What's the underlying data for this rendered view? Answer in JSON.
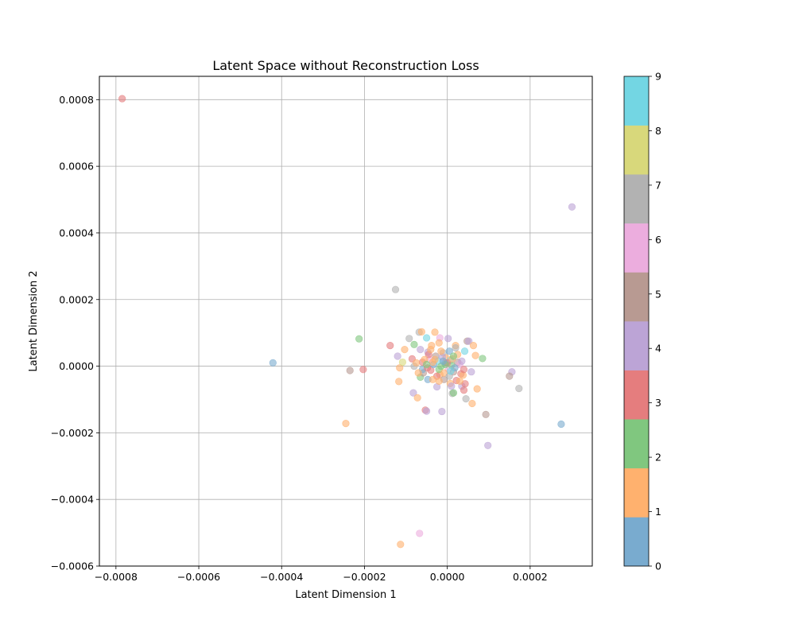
{
  "chart_data": {
    "type": "scatter",
    "title": "Latent Space without Reconstruction Loss",
    "xlabel": "Latent Dimension 1",
    "ylabel": "Latent Dimension 2",
    "xlim": [
      -0.00084,
      0.00035
    ],
    "ylim": [
      -0.0006,
      0.00087
    ],
    "xticks": [
      {
        "value": -0.0008,
        "label": "−0.0008"
      },
      {
        "value": -0.0006,
        "label": "−0.0006"
      },
      {
        "value": -0.0004,
        "label": "−0.0004"
      },
      {
        "value": -0.0002,
        "label": "−0.0002"
      },
      {
        "value": 0.0,
        "label": "0.0000"
      },
      {
        "value": 0.0002,
        "label": "0.0002"
      }
    ],
    "yticks": [
      {
        "value": -0.0006,
        "label": "−0.0006"
      },
      {
        "value": -0.0004,
        "label": "−0.0004"
      },
      {
        "value": -0.0002,
        "label": "−0.0002"
      },
      {
        "value": 0.0,
        "label": "0.0000"
      },
      {
        "value": 0.0002,
        "label": "0.0002"
      },
      {
        "value": 0.0004,
        "label": "0.0004"
      },
      {
        "value": 0.0006,
        "label": "0.0006"
      },
      {
        "value": 0.0008,
        "label": "0.0008"
      }
    ],
    "grid": true,
    "colormap": "tab10",
    "colorbar": {
      "min": 0,
      "max": 9,
      "ticks": [
        {
          "value": 0,
          "label": "0"
        },
        {
          "value": 1,
          "label": "1"
        },
        {
          "value": 2,
          "label": "2"
        },
        {
          "value": 3,
          "label": "3"
        },
        {
          "value": 4,
          "label": "4"
        },
        {
          "value": 5,
          "label": "5"
        },
        {
          "value": 6,
          "label": "6"
        },
        {
          "value": 7,
          "label": "7"
        },
        {
          "value": 8,
          "label": "8"
        },
        {
          "value": 9,
          "label": "9"
        }
      ],
      "colors": [
        "#79abcf",
        "#ffb16e",
        "#80c77f",
        "#e57d7e",
        "#bca4d6",
        "#b89a92",
        "#ecadde",
        "#b2b2b2",
        "#d8d87b",
        "#73d6e3"
      ]
    },
    "points": [
      {
        "x": -0.000785,
        "y": 0.000803,
        "label": 3
      },
      {
        "x": 0.000301,
        "y": 0.000478,
        "label": 4
      },
      {
        "x": -0.000125,
        "y": 0.00023,
        "label": 7
      },
      {
        "x": -0.000421,
        "y": 1e-05,
        "label": 0
      },
      {
        "x": -0.000235,
        "y": -1.3e-05,
        "label": 5
      },
      {
        "x": -0.000203,
        "y": -1e-05,
        "label": 3
      },
      {
        "x": -0.000213,
        "y": 8.2e-05,
        "label": 2
      },
      {
        "x": -0.000245,
        "y": -0.000172,
        "label": 1
      },
      {
        "x": 0.000275,
        "y": -0.000174,
        "label": 0
      },
      {
        "x": 0.000173,
        "y": -6.7e-05,
        "label": 7
      },
      {
        "x": 0.000156,
        "y": -1.7e-05,
        "label": 4
      },
      {
        "x": 0.00015,
        "y": -3e-05,
        "label": 5
      },
      {
        "x": 9.8e-05,
        "y": -0.000238,
        "label": 4
      },
      {
        "x": 9.3e-05,
        "y": -0.000145,
        "label": 5
      },
      {
        "x": 8.5e-05,
        "y": 2.3e-05,
        "label": 2
      },
      {
        "x": -0.000113,
        "y": -0.000535,
        "label": 1
      },
      {
        "x": -6.7e-05,
        "y": -0.000502,
        "label": 6
      },
      {
        "x": -0.000138,
        "y": 6.2e-05,
        "label": 3
      },
      {
        "x": -0.00012,
        "y": 3e-05,
        "label": 4
      },
      {
        "x": -0.000115,
        "y": -5e-06,
        "label": 1
      },
      {
        "x": -0.000117,
        "y": -4.6e-05,
        "label": 1
      },
      {
        "x": -0.000108,
        "y": 1.2e-05,
        "label": 8
      },
      {
        "x": -0.000103,
        "y": 5e-05,
        "label": 1
      },
      {
        "x": -9.2e-05,
        "y": 8.3e-05,
        "label": 7
      },
      {
        "x": -8.5e-05,
        "y": 2.2e-05,
        "label": 3
      },
      {
        "x": -8.2e-05,
        "y": -8e-05,
        "label": 4
      },
      {
        "x": -8e-05,
        "y": 6.5e-05,
        "label": 2
      },
      {
        "x": -8e-05,
        "y": 0.0,
        "label": 7
      },
      {
        "x": -7.2e-05,
        "y": -9.5e-05,
        "label": 1
      },
      {
        "x": -6.8e-05,
        "y": 0.000102,
        "label": 7
      },
      {
        "x": -6.2e-05,
        "y": 0.000103,
        "label": 1
      },
      {
        "x": -6.5e-05,
        "y": -3.3e-05,
        "label": 2
      },
      {
        "x": -6e-05,
        "y": 1.2e-05,
        "label": 3
      },
      {
        "x": -5.8e-05,
        "y": -2e-05,
        "label": 5
      },
      {
        "x": -5.3e-05,
        "y": -0.000132,
        "label": 3
      },
      {
        "x": -5e-05,
        "y": -0.000135,
        "label": 4
      },
      {
        "x": -5e-05,
        "y": 8.5e-05,
        "label": 9
      },
      {
        "x": -4.7e-05,
        "y": 4.2e-05,
        "label": 4
      },
      {
        "x": -4.7e-05,
        "y": -4e-05,
        "label": 0
      },
      {
        "x": -4.3e-05,
        "y": 2e-05,
        "label": 6
      },
      {
        "x": -4e-05,
        "y": -1.2e-05,
        "label": 3
      },
      {
        "x": -3.8e-05,
        "y": 6.2e-05,
        "label": 1
      },
      {
        "x": -3.3e-05,
        "y": 5e-06,
        "label": 0
      },
      {
        "x": -3e-05,
        "y": 0.000102,
        "label": 1
      },
      {
        "x": -2.8e-05,
        "y": 3e-05,
        "label": 5
      },
      {
        "x": -2.5e-05,
        "y": -6.2e-05,
        "label": 4
      },
      {
        "x": -2.2e-05,
        "y": 1.5e-05,
        "label": 9
      },
      {
        "x": -1.8e-05,
        "y": 8.5e-05,
        "label": 6
      },
      {
        "x": -1.8e-05,
        "y": -2.5e-05,
        "label": 1
      },
      {
        "x": -1.5e-05,
        "y": 0.0,
        "label": 2
      },
      {
        "x": -1.3e-05,
        "y": -0.000136,
        "label": 4
      },
      {
        "x": -1e-05,
        "y": 4e-05,
        "label": 7
      },
      {
        "x": -8e-06,
        "y": -4e-05,
        "label": 5
      },
      {
        "x": -5e-06,
        "y": 1e-05,
        "label": 0
      },
      {
        "x": -3e-06,
        "y": 2.5e-05,
        "label": 1
      },
      {
        "x": 2e-06,
        "y": 8.3e-05,
        "label": 4
      },
      {
        "x": 3e-06,
        "y": -1e-05,
        "label": 6
      },
      {
        "x": 5e-06,
        "y": 4.5e-05,
        "label": 0
      },
      {
        "x": 7e-06,
        "y": -5.2e-05,
        "label": 1
      },
      {
        "x": 8e-06,
        "y": 1.8e-05,
        "label": 9
      },
      {
        "x": 1e-05,
        "y": 3e-06,
        "label": 2
      },
      {
        "x": 1.2e-05,
        "y": -8.2e-05,
        "label": 7
      },
      {
        "x": 1.5e-05,
        "y": -1.7e-05,
        "label": 5
      },
      {
        "x": 1.5e-05,
        "y": -8e-05,
        "label": 2
      },
      {
        "x": 2e-05,
        "y": 6.2e-05,
        "label": 1
      },
      {
        "x": 2.2e-05,
        "y": -4.3e-05,
        "label": 3
      },
      {
        "x": 2.5e-05,
        "y": 1.2e-05,
        "label": 5
      },
      {
        "x": 3e-05,
        "y": 5e-06,
        "label": 6
      },
      {
        "x": 3.3e-05,
        "y": -2.3e-05,
        "label": 3
      },
      {
        "x": 3.5e-05,
        "y": -6e-05,
        "label": 4
      },
      {
        "x": 3.8e-05,
        "y": -2.7e-05,
        "label": 1
      },
      {
        "x": 4e-05,
        "y": -7.2e-05,
        "label": 3
      },
      {
        "x": 4.2e-05,
        "y": 4.5e-05,
        "label": 9
      },
      {
        "x": 4.3e-05,
        "y": -5.3e-05,
        "label": 3
      },
      {
        "x": 4.5e-05,
        "y": -9.8e-05,
        "label": 7
      },
      {
        "x": 4.8e-05,
        "y": 7.5e-05,
        "label": 5
      },
      {
        "x": 5.2e-05,
        "y": 7.5e-05,
        "label": 4
      },
      {
        "x": 5.8e-05,
        "y": -1.7e-05,
        "label": 4
      },
      {
        "x": 6e-05,
        "y": -0.000112,
        "label": 1
      },
      {
        "x": 6.3e-05,
        "y": 6.2e-05,
        "label": 1
      },
      {
        "x": 6.8e-05,
        "y": 3.2e-05,
        "label": 1
      },
      {
        "x": 7.2e-05,
        "y": -6.8e-05,
        "label": 1
      },
      {
        "x": -4.5e-05,
        "y": 3.5e-05,
        "label": 3
      },
      {
        "x": -3.5e-05,
        "y": 1.2e-05,
        "label": 1
      },
      {
        "x": -2.5e-05,
        "y": -3e-05,
        "label": 3
      },
      {
        "x": -2e-05,
        "y": -1e-05,
        "label": 2
      },
      {
        "x": -1.2e-05,
        "y": 2.8e-05,
        "label": 4
      },
      {
        "x": -8e-06,
        "y": -2e-05,
        "label": 1
      },
      {
        "x": 0.0,
        "y": 1e-05,
        "label": 3
      },
      {
        "x": 5e-06,
        "y": -3e-05,
        "label": 7
      },
      {
        "x": 1.2e-05,
        "y": 2.2e-05,
        "label": 1
      },
      {
        "x": 1.8e-05,
        "y": -5e-06,
        "label": 0
      },
      {
        "x": 2.5e-05,
        "y": 3.5e-05,
        "label": 1
      },
      {
        "x": 8e-06,
        "y": -1.5e-05,
        "label": 9
      },
      {
        "x": -5.5e-05,
        "y": 2e-05,
        "label": 1
      },
      {
        "x": -6e-05,
        "y": -1e-05,
        "label": 0
      },
      {
        "x": -4.8e-05,
        "y": -5e-06,
        "label": 3
      },
      {
        "x": -3e-05,
        "y": 2e-05,
        "label": 1
      },
      {
        "x": -1.5e-05,
        "y": 4.5e-05,
        "label": 1
      },
      {
        "x": -2e-05,
        "y": -4.5e-05,
        "label": 1
      },
      {
        "x": 3e-05,
        "y": -4.5e-05,
        "label": 1
      },
      {
        "x": 1.5e-05,
        "y": 3e-05,
        "label": 2
      },
      {
        "x": -5e-06,
        "y": 5e-06,
        "label": 2
      },
      {
        "x": -7.5e-05,
        "y": 1e-05,
        "label": 1
      },
      {
        "x": -7e-05,
        "y": -2e-05,
        "label": 1
      },
      {
        "x": -6.5e-05,
        "y": 5e-05,
        "label": 4
      },
      {
        "x": -4e-05,
        "y": 5e-05,
        "label": 1
      },
      {
        "x": 1e-05,
        "y": -6e-05,
        "label": 4
      },
      {
        "x": 2e-05,
        "y": 5.5e-05,
        "label": 7
      },
      {
        "x": -3.5e-05,
        "y": -4e-05,
        "label": 1
      },
      {
        "x": -1e-05,
        "y": 1.5e-05,
        "label": 0
      },
      {
        "x": 3.5e-05,
        "y": 1.5e-05,
        "label": 4
      },
      {
        "x": -5e-05,
        "y": 5e-06,
        "label": 2
      },
      {
        "x": -2e-05,
        "y": 7e-05,
        "label": 1
      },
      {
        "x": 4e-05,
        "y": -1e-05,
        "label": 3
      }
    ]
  }
}
